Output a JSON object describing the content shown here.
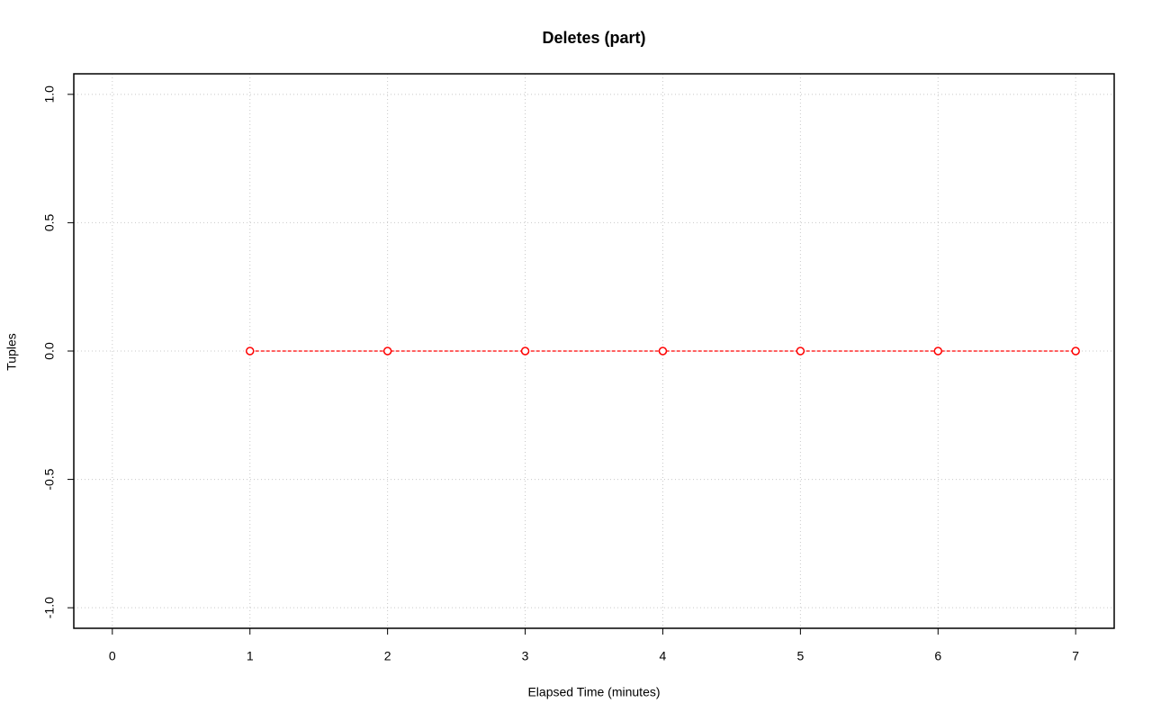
{
  "chart_data": {
    "type": "line",
    "title": "Deletes (part)",
    "x_label": "Elapsed Time (minutes)",
    "y_label": "Tuples",
    "x": [
      1,
      2,
      3,
      4,
      5,
      6,
      7
    ],
    "values": [
      0,
      0,
      0,
      0,
      0,
      0,
      0
    ],
    "color": "#ff0000",
    "xlim": [
      -0.28,
      7.28
    ],
    "xticks": [
      0,
      1,
      2,
      3,
      4,
      5,
      6,
      7
    ],
    "ylim": [
      -1.08,
      1.08
    ],
    "yticks": [
      {
        "value": -1,
        "label": "-1.0"
      },
      {
        "value": -0.5,
        "label": "-0.5"
      },
      {
        "value": 0,
        "label": "0.0"
      },
      {
        "value": 0.5,
        "label": "0.5"
      },
      {
        "value": 1,
        "label": "1.0"
      }
    ],
    "grid": true
  }
}
